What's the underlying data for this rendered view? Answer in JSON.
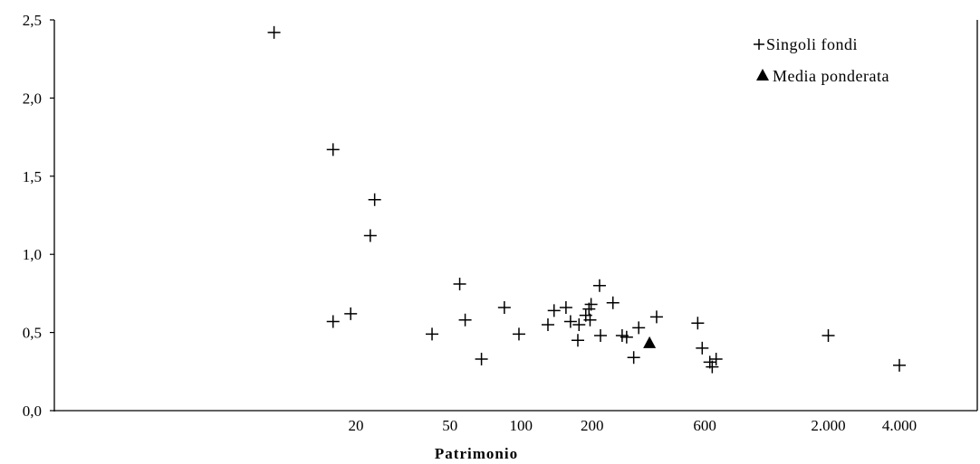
{
  "chart_data": {
    "type": "scatter",
    "xlabel": "Patrimonio",
    "ylabel": "",
    "x_scale": "log",
    "ylim": [
      0,
      2.5
    ],
    "y_ticks": [
      {
        "value": 0.0,
        "label": "0,0"
      },
      {
        "value": 0.5,
        "label": "0,5"
      },
      {
        "value": 1.0,
        "label": "1,0"
      },
      {
        "value": 1.5,
        "label": "1,5"
      },
      {
        "value": 2.0,
        "label": "2,0"
      },
      {
        "value": 2.5,
        "label": "2,5"
      }
    ],
    "x_ticks": [
      {
        "value": 20,
        "label": "20"
      },
      {
        "value": 50,
        "label": "50"
      },
      {
        "value": 100,
        "label": "100"
      },
      {
        "value": 200,
        "label": "200"
      },
      {
        "value": 600,
        "label": "600"
      },
      {
        "value": 2000,
        "label": "2.000"
      },
      {
        "value": 4000,
        "label": "4.000"
      }
    ],
    "grid": false,
    "legend": {
      "position": "top-right",
      "entries": [
        {
          "label": "Singoli fondi",
          "marker": "plus"
        },
        {
          "label": "Media ponderata",
          "marker": "triangle"
        }
      ]
    },
    "series": [
      {
        "name": "Singoli fondi",
        "marker": "plus",
        "points": [
          {
            "x": 9,
            "y": 2.42
          },
          {
            "x": 16,
            "y": 1.67
          },
          {
            "x": 16,
            "y": 0.57
          },
          {
            "x": 19,
            "y": 0.62
          },
          {
            "x": 23,
            "y": 1.12
          },
          {
            "x": 24,
            "y": 1.35
          },
          {
            "x": 42,
            "y": 0.49
          },
          {
            "x": 55,
            "y": 0.81
          },
          {
            "x": 58,
            "y": 0.58
          },
          {
            "x": 68,
            "y": 0.33
          },
          {
            "x": 85,
            "y": 0.66
          },
          {
            "x": 98,
            "y": 0.49
          },
          {
            "x": 130,
            "y": 0.55
          },
          {
            "x": 138,
            "y": 0.64
          },
          {
            "x": 155,
            "y": 0.66
          },
          {
            "x": 162,
            "y": 0.57
          },
          {
            "x": 174,
            "y": 0.45
          },
          {
            "x": 176,
            "y": 0.55
          },
          {
            "x": 188,
            "y": 0.61
          },
          {
            "x": 194,
            "y": 0.65
          },
          {
            "x": 196,
            "y": 0.58
          },
          {
            "x": 198,
            "y": 0.68
          },
          {
            "x": 215,
            "y": 0.8
          },
          {
            "x": 217,
            "y": 0.48
          },
          {
            "x": 245,
            "y": 0.69
          },
          {
            "x": 268,
            "y": 0.48
          },
          {
            "x": 280,
            "y": 0.47
          },
          {
            "x": 300,
            "y": 0.34
          },
          {
            "x": 315,
            "y": 0.53
          },
          {
            "x": 375,
            "y": 0.6
          },
          {
            "x": 560,
            "y": 0.56
          },
          {
            "x": 585,
            "y": 0.4
          },
          {
            "x": 630,
            "y": 0.31
          },
          {
            "x": 645,
            "y": 0.28
          },
          {
            "x": 670,
            "y": 0.33
          },
          {
            "x": 2000,
            "y": 0.48
          },
          {
            "x": 4000,
            "y": 0.29
          }
        ]
      },
      {
        "name": "Media ponderata",
        "marker": "triangle",
        "points": [
          {
            "x": 350,
            "y": 0.43
          }
        ]
      }
    ]
  }
}
